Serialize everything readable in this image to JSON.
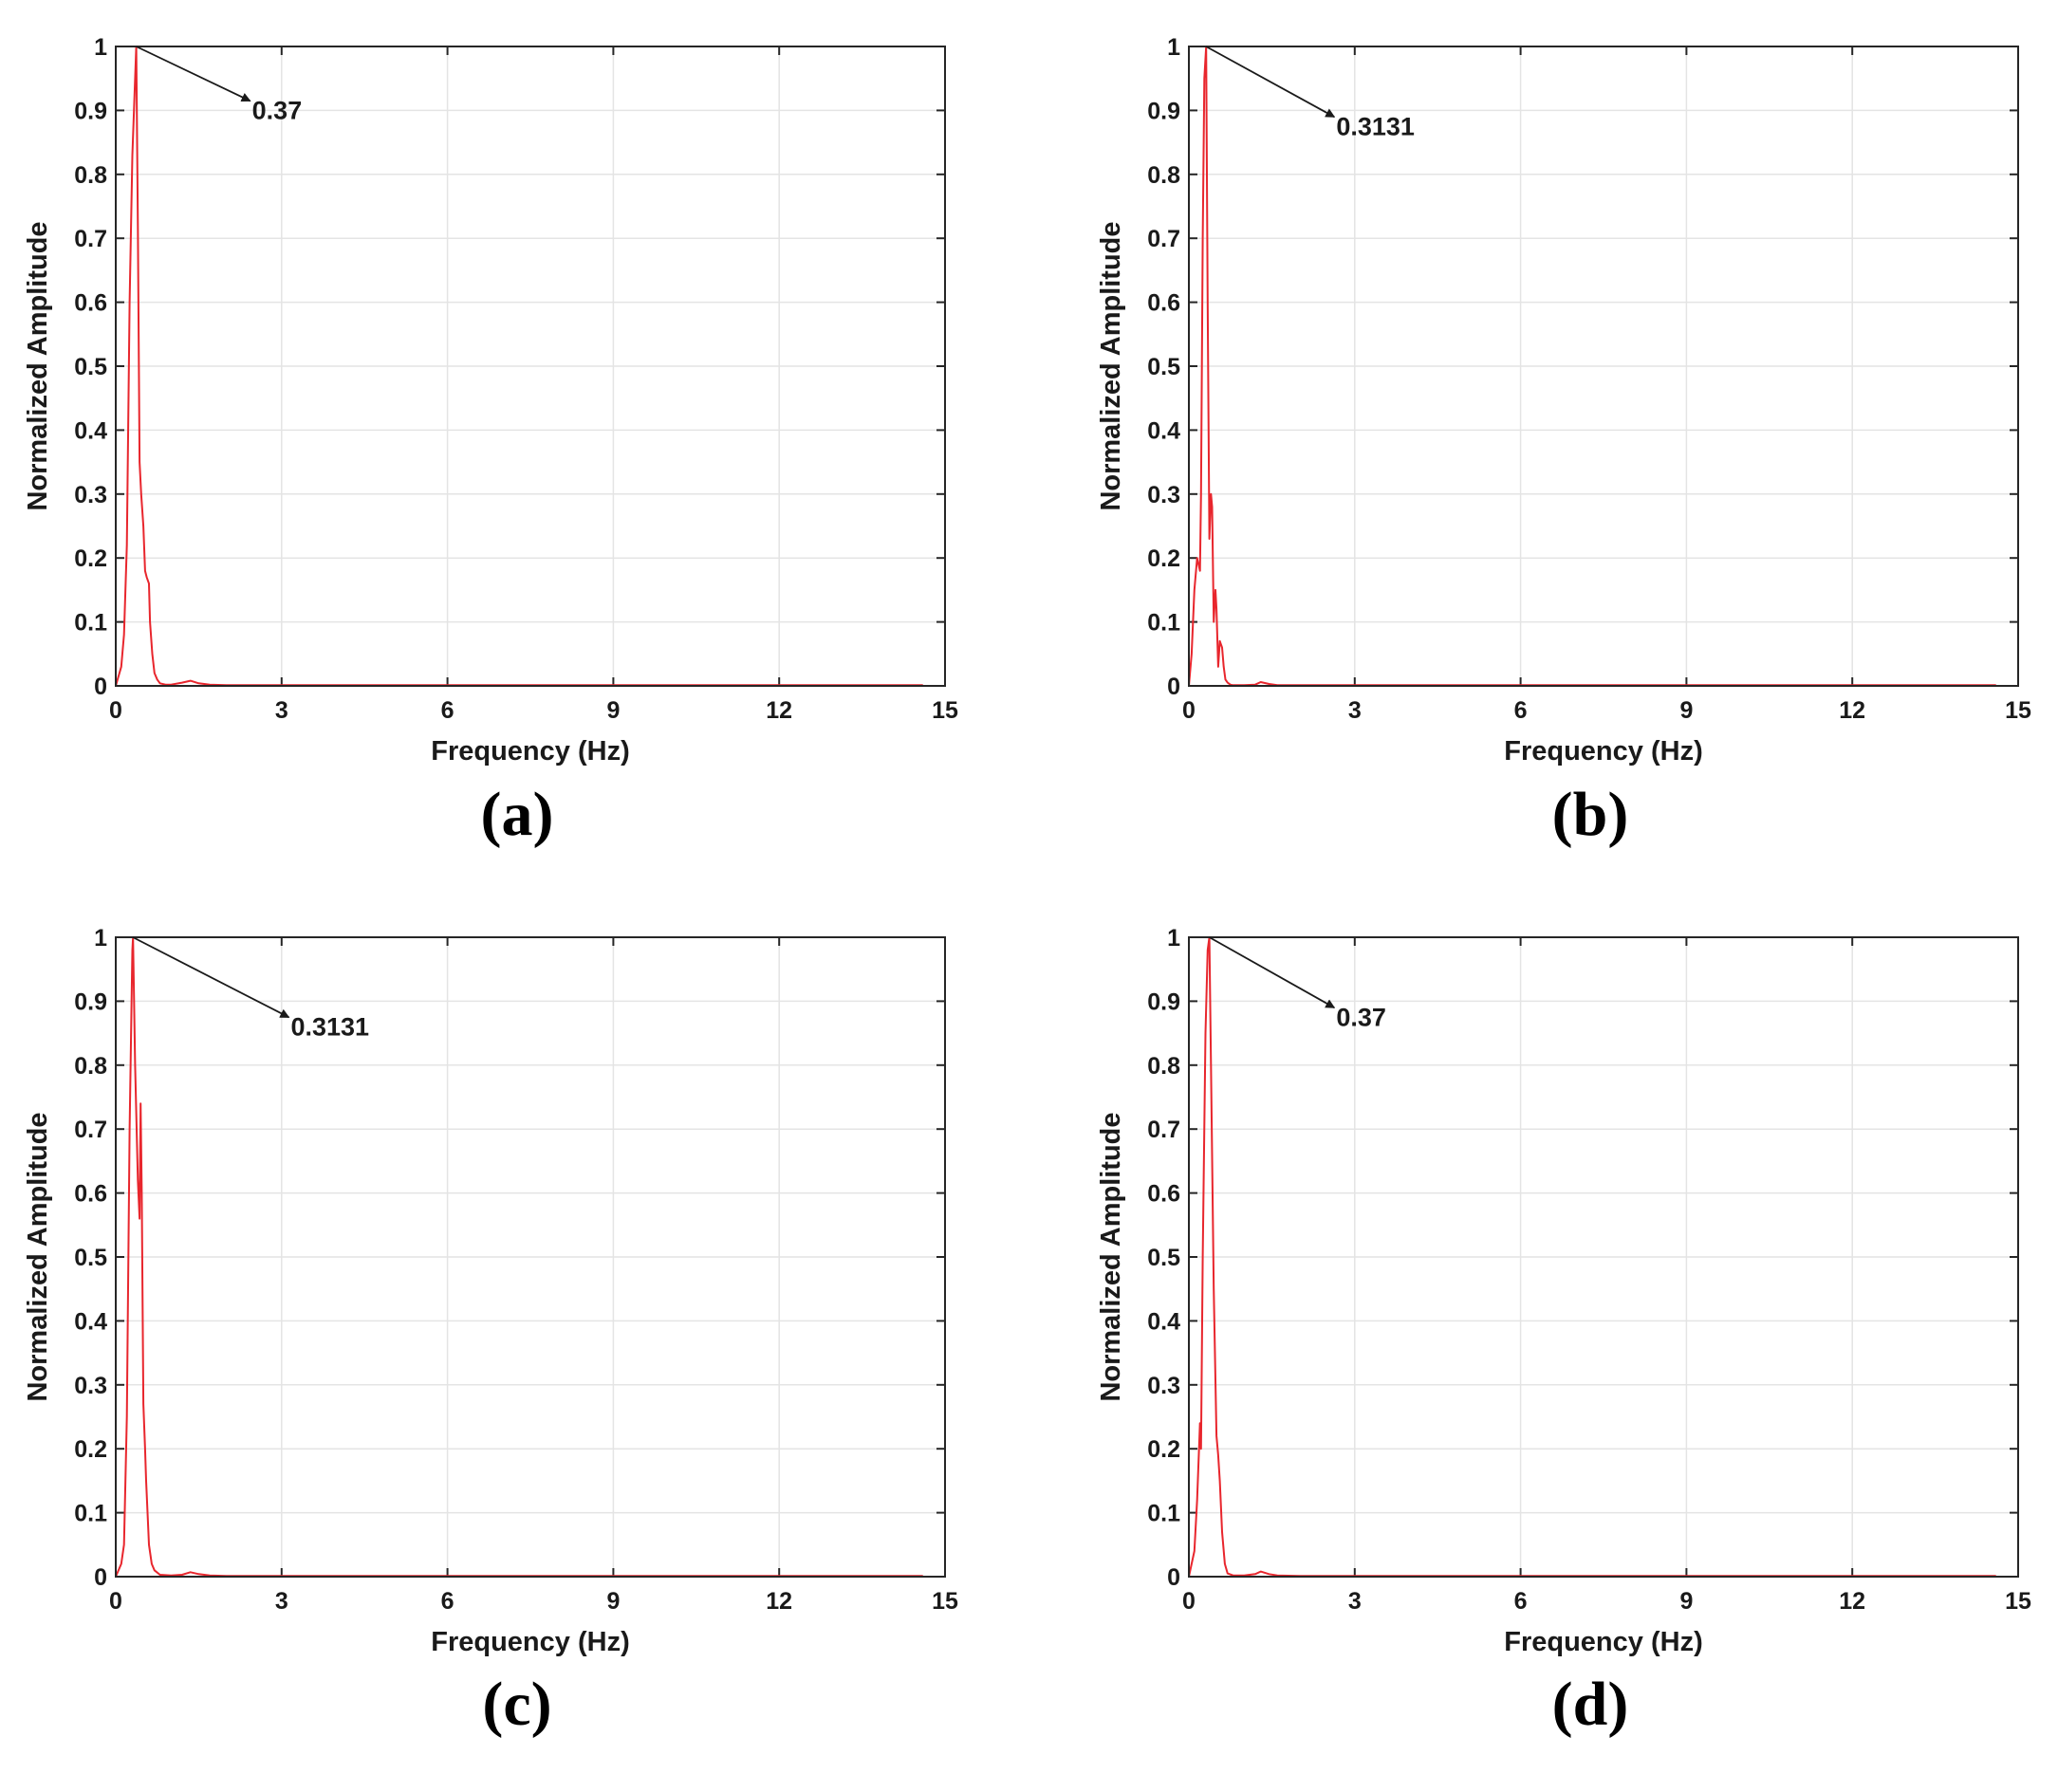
{
  "chart_data": [
    {
      "type": "line",
      "panel_label": "(a)",
      "xlabel": "Frequency (Hz)",
      "ylabel": "Normalized Amplitude",
      "xlim": [
        0,
        15
      ],
      "ylim": [
        0,
        1
      ],
      "xticks": [
        "0",
        "3",
        "6",
        "9",
        "12",
        "15"
      ],
      "yticks": [
        "0",
        "0.1",
        "0.2",
        "0.3",
        "0.4",
        "0.5",
        "0.6",
        "0.7",
        "0.8",
        "0.9",
        "1"
      ],
      "grid": true,
      "line_color": "#e8262d",
      "annotation": {
        "text": "0.37",
        "target": [
          0.37,
          1.0
        ],
        "label_at": [
          2.5,
          0.9
        ]
      },
      "series": [
        {
          "x": [
            0,
            0.1,
            0.15,
            0.2,
            0.25,
            0.3,
            0.33,
            0.37,
            0.4,
            0.43,
            0.46,
            0.5,
            0.53,
            0.56,
            0.6,
            0.62,
            0.66,
            0.7,
            0.75,
            0.8,
            0.9,
            1.0,
            1.2,
            1.35,
            1.5,
            1.7,
            2.0,
            3.0,
            6.0,
            9.0,
            12.0,
            14.6
          ],
          "y": [
            0,
            0.03,
            0.08,
            0.22,
            0.6,
            0.83,
            0.9,
            1.0,
            0.72,
            0.35,
            0.3,
            0.25,
            0.18,
            0.17,
            0.16,
            0.1,
            0.05,
            0.02,
            0.01,
            0.004,
            0.002,
            0.002,
            0.005,
            0.008,
            0.004,
            0.002,
            0.001,
            0.001,
            0.001,
            0.001,
            0.001,
            0.001
          ]
        }
      ]
    },
    {
      "type": "line",
      "panel_label": "(b)",
      "xlabel": "Frequency (Hz)",
      "ylabel": "Normalized Amplitude",
      "xlim": [
        0,
        15
      ],
      "ylim": [
        0,
        1
      ],
      "xticks": [
        "0",
        "3",
        "6",
        "9",
        "12",
        "15"
      ],
      "yticks": [
        "0",
        "0.1",
        "0.2",
        "0.3",
        "0.4",
        "0.5",
        "0.6",
        "0.7",
        "0.8",
        "0.9",
        "1"
      ],
      "grid": true,
      "line_color": "#e8262d",
      "annotation": {
        "text": "0.3131",
        "target": [
          0.31,
          1.0
        ],
        "label_at": [
          2.7,
          0.875
        ]
      },
      "series": [
        {
          "x": [
            0,
            0.05,
            0.1,
            0.15,
            0.2,
            0.22,
            0.25,
            0.28,
            0.3131,
            0.34,
            0.37,
            0.4,
            0.42,
            0.45,
            0.48,
            0.5,
            0.53,
            0.56,
            0.6,
            0.63,
            0.66,
            0.7,
            0.75,
            0.8,
            1.0,
            1.2,
            1.3,
            1.45,
            1.6,
            2.0,
            3.0,
            6.0,
            9.0,
            12.0,
            14.6
          ],
          "y": [
            0,
            0.05,
            0.15,
            0.2,
            0.18,
            0.3,
            0.7,
            0.95,
            1.0,
            0.6,
            0.23,
            0.3,
            0.28,
            0.1,
            0.15,
            0.12,
            0.03,
            0.07,
            0.06,
            0.03,
            0.01,
            0.005,
            0.002,
            0.001,
            0.001,
            0.002,
            0.006,
            0.003,
            0.001,
            0.001,
            0.001,
            0.001,
            0.001,
            0.001,
            0.001
          ]
        }
      ]
    },
    {
      "type": "line",
      "panel_label": "(c)",
      "xlabel": "Frequency (Hz)",
      "ylabel": "Normalized Amplitude",
      "xlim": [
        0,
        15
      ],
      "ylim": [
        0,
        1
      ],
      "xticks": [
        "0",
        "3",
        "6",
        "9",
        "12",
        "15"
      ],
      "yticks": [
        "0",
        "0.1",
        "0.2",
        "0.3",
        "0.4",
        "0.5",
        "0.6",
        "0.7",
        "0.8",
        "0.9",
        "1"
      ],
      "grid": true,
      "line_color": "#e8262d",
      "annotation": {
        "text": "0.3131",
        "target": [
          0.31,
          1.0
        ],
        "label_at": [
          3.2,
          0.86
        ]
      },
      "series": [
        {
          "x": [
            0,
            0.1,
            0.15,
            0.2,
            0.25,
            0.3,
            0.3131,
            0.35,
            0.4,
            0.43,
            0.45,
            0.47,
            0.5,
            0.53,
            0.55,
            0.6,
            0.65,
            0.7,
            0.8,
            1.0,
            1.2,
            1.35,
            1.5,
            1.7,
            2.0,
            3.0,
            6.0,
            9.0,
            12.0,
            14.6
          ],
          "y": [
            0,
            0.02,
            0.05,
            0.25,
            0.7,
            0.98,
            1.0,
            0.8,
            0.62,
            0.56,
            0.74,
            0.6,
            0.27,
            0.2,
            0.15,
            0.05,
            0.02,
            0.01,
            0.003,
            0.002,
            0.003,
            0.007,
            0.004,
            0.002,
            0.001,
            0.001,
            0.001,
            0.001,
            0.001,
            0.001
          ]
        }
      ]
    },
    {
      "type": "line",
      "panel_label": "(d)",
      "xlabel": "Frequency (Hz)",
      "ylabel": "Normalized Amplitude",
      "xlim": [
        0,
        15
      ],
      "ylim": [
        0,
        1
      ],
      "xticks": [
        "0",
        "3",
        "6",
        "9",
        "12",
        "15"
      ],
      "yticks": [
        "0",
        "0.1",
        "0.2",
        "0.3",
        "0.4",
        "0.5",
        "0.6",
        "0.7",
        "0.8",
        "0.9",
        "1"
      ],
      "grid": true,
      "line_color": "#e8262d",
      "annotation": {
        "text": "0.37",
        "target": [
          0.37,
          1.0
        ],
        "label_at": [
          2.7,
          0.875
        ]
      },
      "series": [
        {
          "x": [
            0,
            0.1,
            0.15,
            0.2,
            0.22,
            0.25,
            0.3,
            0.34,
            0.37,
            0.4,
            0.45,
            0.5,
            0.53,
            0.56,
            0.6,
            0.65,
            0.7,
            0.8,
            1.0,
            1.2,
            1.3,
            1.45,
            1.6,
            2.0,
            3.0,
            6.0,
            9.0,
            12.0,
            14.6
          ],
          "y": [
            0,
            0.04,
            0.12,
            0.24,
            0.2,
            0.5,
            0.85,
            0.98,
            1.0,
            0.8,
            0.45,
            0.22,
            0.19,
            0.15,
            0.07,
            0.02,
            0.005,
            0.002,
            0.002,
            0.004,
            0.008,
            0.004,
            0.002,
            0.001,
            0.001,
            0.001,
            0.001,
            0.001,
            0.001
          ]
        }
      ]
    }
  ]
}
